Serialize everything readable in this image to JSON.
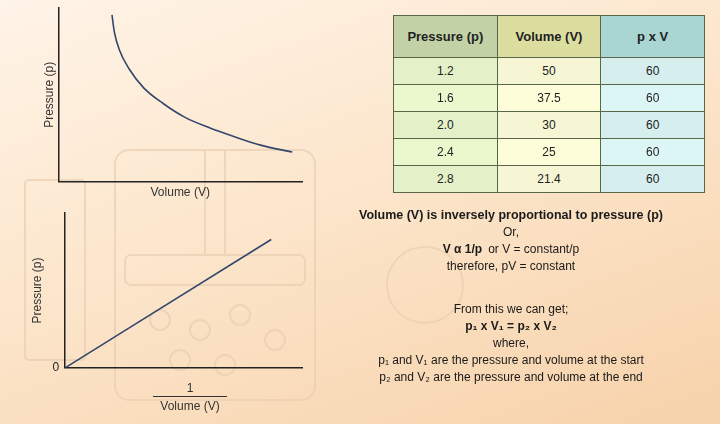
{
  "chart_data": [
    {
      "type": "line",
      "x_label": "Volume (V)",
      "y_label": "Pressure (p)",
      "x": [
        2.2,
        2.3,
        2.5,
        2.9,
        3.5,
        4.3,
        5.2,
        6.2,
        7.2,
        8.3,
        9.6
      ],
      "values": [
        9.6,
        8.6,
        7.6,
        6.5,
        5.4,
        4.5,
        3.7,
        3.1,
        2.6,
        2.1,
        1.7
      ],
      "color": "#34466b",
      "xlim": [
        0,
        10
      ],
      "ylim": [
        0,
        10
      ],
      "tick_labels": false,
      "grid": false
    },
    {
      "type": "line",
      "x_label": {
        "numerator": "1",
        "denominator": "Volume (V)"
      },
      "y_label": "Pressure (p)",
      "x": [
        0,
        8.7
      ],
      "values": [
        0,
        8.3
      ],
      "color": "#34466b",
      "xlim": [
        0,
        10
      ],
      "ylim": [
        0,
        10
      ],
      "yticks": [
        0
      ],
      "tick_labels": "y",
      "grid": false
    }
  ],
  "table": {
    "header": [
      "Pressure (p)",
      "Volume (V)",
      "p x V"
    ],
    "header_colors": [
      "#c3d2a6",
      "#dcdea0",
      "#a9d6d2"
    ],
    "column_colors": [
      "#e4f1c8",
      "#f6f6d4",
      "#d6eeee"
    ],
    "rows": [
      [
        "1.2",
        "50",
        "60"
      ],
      [
        "1.6",
        "37.5",
        "60"
      ],
      [
        "2.0",
        "30",
        "60"
      ],
      [
        "2.4",
        "25",
        "60"
      ],
      [
        "2.8",
        "21.4",
        "60"
      ]
    ]
  },
  "text": {
    "heading": "Volume (V) is inversely proportional to pressure (p)",
    "lines": [
      [
        {
          "text": "Or,"
        }
      ],
      [
        {
          "text": "V α 1/p",
          "bold": true
        },
        {
          "text": "or  V = constant/p"
        }
      ],
      [
        {
          "text": "therefore,  pV = constant"
        }
      ],
      [
        {
          "text": "From this we can get;"
        }
      ],
      [
        {
          "text": "p₁ x V₁ = p₂ x V₂",
          "bold": true
        }
      ],
      [
        {
          "text": "where,"
        }
      ],
      [
        {
          "text": "p₁ and V₁ are the pressure and volume at the start"
        }
      ],
      [
        {
          "text": "p₂ and V₂ are the pressure and volume at the end"
        }
      ]
    ]
  }
}
